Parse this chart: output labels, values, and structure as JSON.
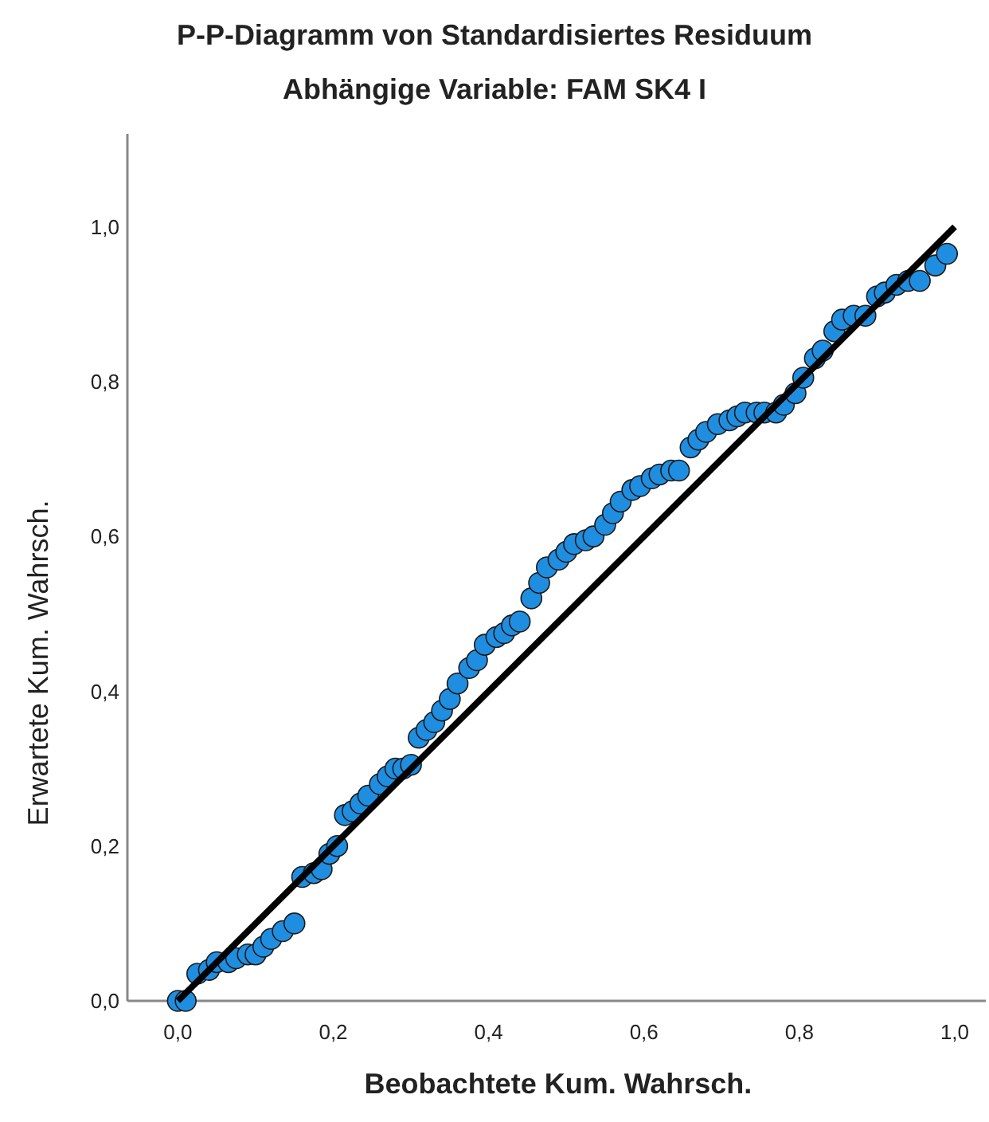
{
  "chart_data": {
    "type": "scatter",
    "title": "P-P-Diagramm von Standardisiertes Residuum",
    "subtitle": "Abhängige Variable: FAM SK4 I",
    "xlabel": "Beobachtete Kum. Wahrsch.",
    "ylabel": "Erwartete Kum. Wahrsch.",
    "xlim": [
      -0.065,
      1.04
    ],
    "ylim": [
      0,
      1.12
    ],
    "xticks": [
      {
        "value": 0,
        "label": "0,0"
      },
      {
        "value": 0.2,
        "label": "0,2"
      },
      {
        "value": 0.4,
        "label": "0,4"
      },
      {
        "value": 0.6,
        "label": "0,6"
      },
      {
        "value": 0.8,
        "label": "0,8"
      },
      {
        "value": 1,
        "label": "1,0"
      }
    ],
    "yticks": [
      {
        "value": 0,
        "label": "0,0"
      },
      {
        "value": 0.2,
        "label": "0,2"
      },
      {
        "value": 0.4,
        "label": "0,4"
      },
      {
        "value": 0.6,
        "label": "0,6"
      },
      {
        "value": 0.8,
        "label": "0,8"
      },
      {
        "value": 1,
        "label": "1,0"
      }
    ],
    "grid": false,
    "series": [
      {
        "color": "#1f8ee0",
        "marker": "circle",
        "x": [
          0,
          0.01,
          0.025,
          0.04,
          0.05,
          0.065,
          0.075,
          0.09,
          0.1,
          0.11,
          0.12,
          0.135,
          0.15,
          0.16,
          0.175,
          0.185,
          0.195,
          0.205,
          0.215,
          0.225,
          0.235,
          0.245,
          0.26,
          0.27,
          0.28,
          0.29,
          0.3,
          0.31,
          0.32,
          0.33,
          0.34,
          0.35,
          0.36,
          0.375,
          0.385,
          0.395,
          0.41,
          0.42,
          0.43,
          0.44,
          0.455,
          0.465,
          0.475,
          0.49,
          0.5,
          0.51,
          0.525,
          0.535,
          0.55,
          0.56,
          0.57,
          0.585,
          0.595,
          0.61,
          0.62,
          0.635,
          0.645,
          0.66,
          0.67,
          0.68,
          0.695,
          0.71,
          0.72,
          0.73,
          0.745,
          0.755,
          0.77,
          0.78,
          0.795,
          0.805,
          0.82,
          0.83,
          0.845,
          0.855,
          0.87,
          0.885,
          0.9,
          0.91,
          0.925,
          0.94,
          0.955,
          0.975,
          0.99
        ],
        "values": [
          0,
          0,
          0.035,
          0.04,
          0.05,
          0.05,
          0.055,
          0.06,
          0.06,
          0.07,
          0.08,
          0.09,
          0.1,
          0.16,
          0.165,
          0.17,
          0.19,
          0.2,
          0.24,
          0.245,
          0.255,
          0.265,
          0.28,
          0.29,
          0.3,
          0.3,
          0.305,
          0.34,
          0.35,
          0.36,
          0.375,
          0.39,
          0.41,
          0.43,
          0.44,
          0.46,
          0.47,
          0.475,
          0.485,
          0.49,
          0.52,
          0.54,
          0.56,
          0.57,
          0.58,
          0.59,
          0.595,
          0.6,
          0.615,
          0.63,
          0.645,
          0.66,
          0.665,
          0.675,
          0.68,
          0.685,
          0.685,
          0.715,
          0.725,
          0.735,
          0.745,
          0.75,
          0.755,
          0.76,
          0.76,
          0.76,
          0.76,
          0.77,
          0.785,
          0.805,
          0.83,
          0.84,
          0.865,
          0.88,
          0.885,
          0.885,
          0.91,
          0.915,
          0.925,
          0.93,
          0.93,
          0.95,
          0.965
        ]
      },
      {
        "type": "line",
        "color": "#000000",
        "x": [
          0,
          1
        ],
        "values": [
          0,
          1
        ],
        "marker": "none"
      }
    ]
  }
}
